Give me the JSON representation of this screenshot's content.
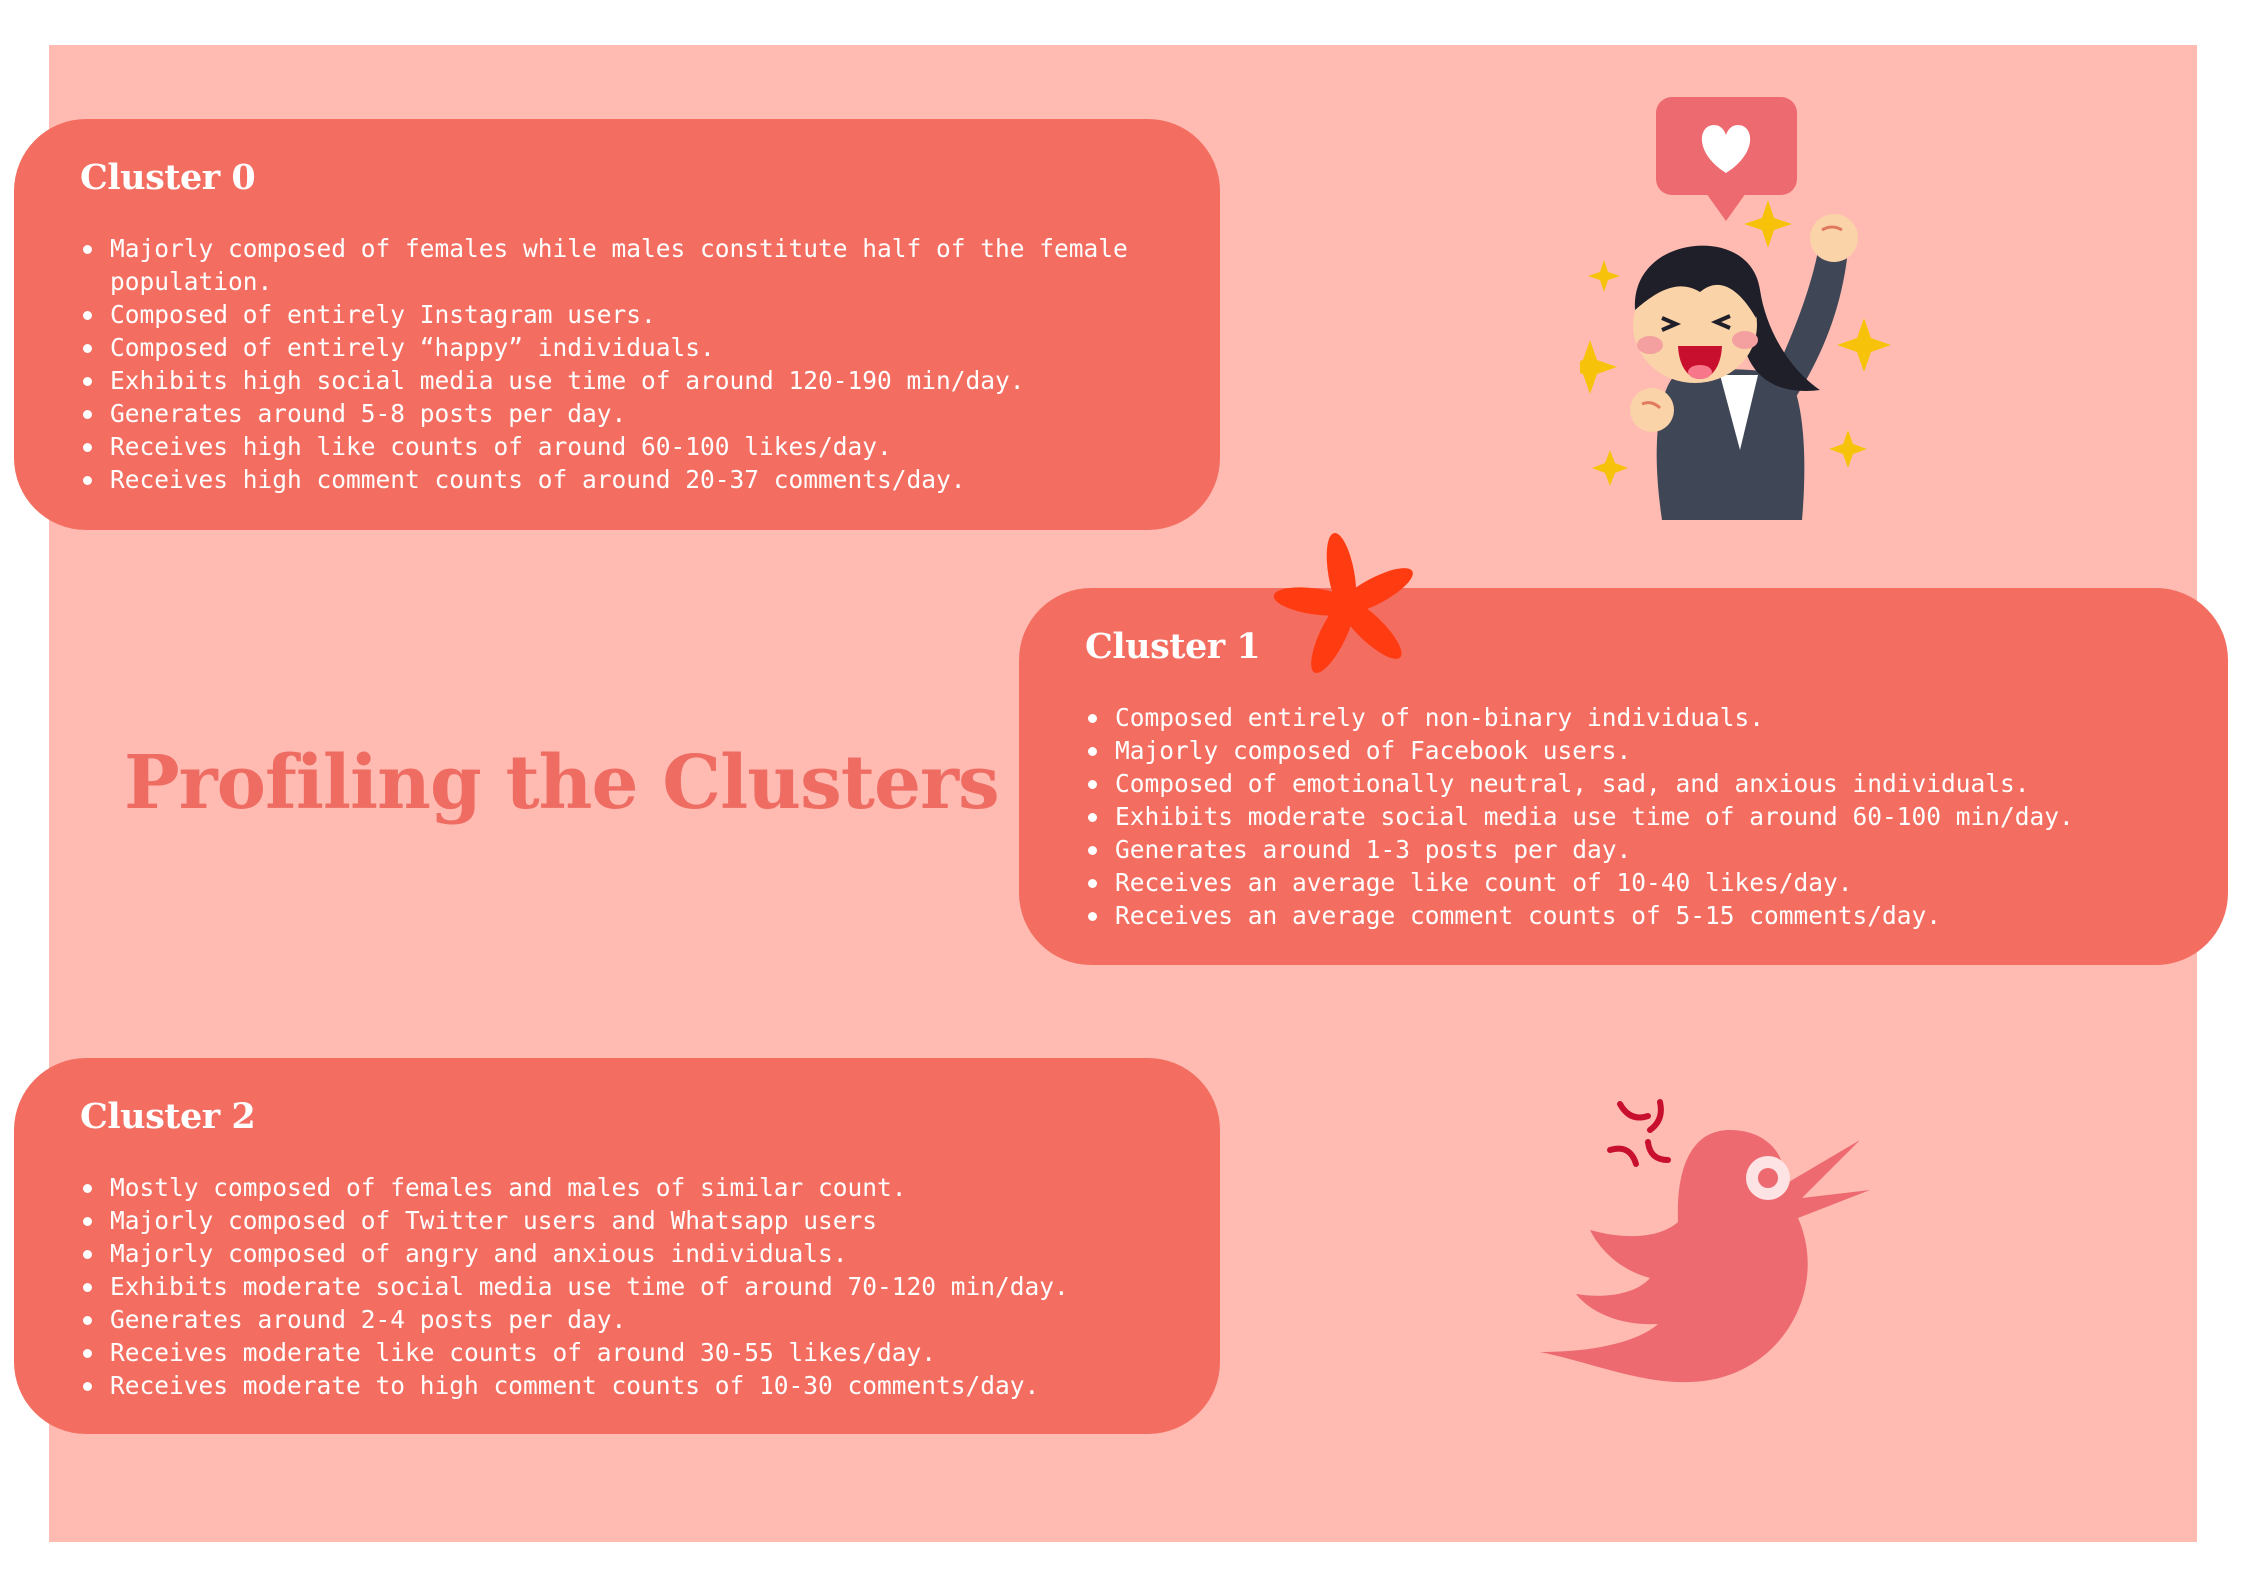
{
  "page": {
    "title": "Profiling the Clusters"
  },
  "clusters": [
    {
      "title": "Cluster 0",
      "items": [
        "Majorly composed of females while males constitute half of the female\npopulation.",
        "Composed of entirely Instagram users.",
        "Composed of entirely “happy” individuals.",
        "Exhibits high social media use time of around 120-190 min/day.",
        "Generates around 5-8 posts per day.",
        "Receives high like counts of around 60-100 likes/day.",
        "Receives high comment counts of around 20-37 comments/day."
      ]
    },
    {
      "title": "Cluster 1",
      "items": [
        "Composed entirely of non-binary individuals.",
        "Majorly composed of Facebook users.",
        "Composed of emotionally neutral, sad, and anxious individuals.",
        "Exhibits moderate social media use time of around 60-100 min/day.",
        "Generates around 1-3 posts per day.",
        "Receives an average like count of 10-40 likes/day.",
        "Receives an average comment counts of 5-15 comments/day."
      ]
    },
    {
      "title": "Cluster 2",
      "items": [
        "Mostly composed of females and males of similar count.",
        "Majorly composed of Twitter users and Whatsapp users",
        "Majorly composed of angry and anxious individuals.",
        "Exhibits moderate social media use time of around 70-120 min/day.",
        "Generates around 2-4 posts per day.",
        "Receives moderate like counts of around 30-55 likes/day.",
        "Receives moderate to high comment counts of 10-30 comments/day."
      ]
    }
  ],
  "icons": {
    "cheer": "cheering-woman-icon",
    "heart": "heart-bubble-icon",
    "flower": "asterisk-flower-icon",
    "bird": "angry-bird-icon"
  },
  "colors": {
    "panel": "#ffbbb2",
    "card": "#f36e61",
    "title": "#ef6c63"
  }
}
